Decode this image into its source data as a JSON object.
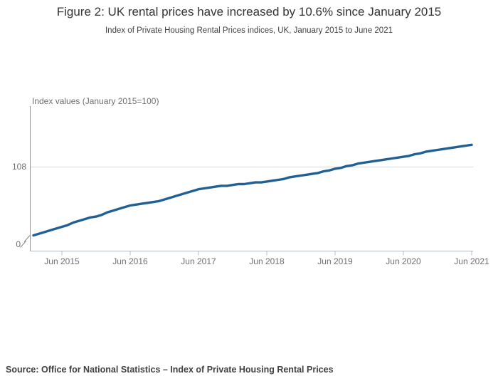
{
  "chart_data": {
    "type": "line",
    "title": "Figure 2: UK rental prices have increased by 10.6% since January 2015",
    "subtitle": "Index of Private Housing Rental Prices indices, UK, January 2015 to June 2021",
    "ylabel": "Index values (January 2015=100)",
    "xlabel": "",
    "x_tick_labels": [
      "Jun 2015",
      "Jun 2016",
      "Jun 2017",
      "Jun 2018",
      "Jun 2019",
      "Jun 2020",
      "Jun 2021"
    ],
    "y_tick_labels": [
      "108",
      "0"
    ],
    "y_axis_break": true,
    "gridline_values": [
      108
    ],
    "ylim_display": [
      100,
      114.5
    ],
    "legend": "none",
    "grid": "horizontal-only",
    "line_color": "#206095",
    "axis_color": "#949494",
    "tick_color": "#b3bac0",
    "gridline_color": "#d9d9d9",
    "x_start": "Jan 2015",
    "x_end": "Jun 2021",
    "frequency": "monthly",
    "series": [
      {
        "name": "UK Index of Private Housing Rental Prices",
        "color": "#206095",
        "values": [
          100.0,
          100.2,
          100.4,
          100.6,
          100.8,
          101.0,
          101.2,
          101.5,
          101.7,
          101.9,
          102.1,
          102.2,
          102.4,
          102.7,
          102.9,
          103.1,
          103.3,
          103.5,
          103.6,
          103.7,
          103.8,
          103.9,
          104.0,
          104.2,
          104.4,
          104.6,
          104.8,
          105.0,
          105.2,
          105.4,
          105.5,
          105.6,
          105.7,
          105.8,
          105.8,
          105.9,
          106.0,
          106.0,
          106.1,
          106.2,
          106.2,
          106.3,
          106.4,
          106.5,
          106.6,
          106.8,
          106.9,
          107.0,
          107.1,
          107.2,
          107.3,
          107.5,
          107.6,
          107.8,
          107.9,
          108.1,
          108.2,
          108.4,
          108.5,
          108.6,
          108.7,
          108.8,
          108.9,
          109.0,
          109.1,
          109.2,
          109.3,
          109.5,
          109.6,
          109.8,
          109.9,
          110.0,
          110.1,
          110.2,
          110.3,
          110.4,
          110.5,
          110.6
        ]
      }
    ]
  },
  "footer": {
    "source": "Source: Office for National Statistics – Index of Private Housing Rental Prices"
  }
}
